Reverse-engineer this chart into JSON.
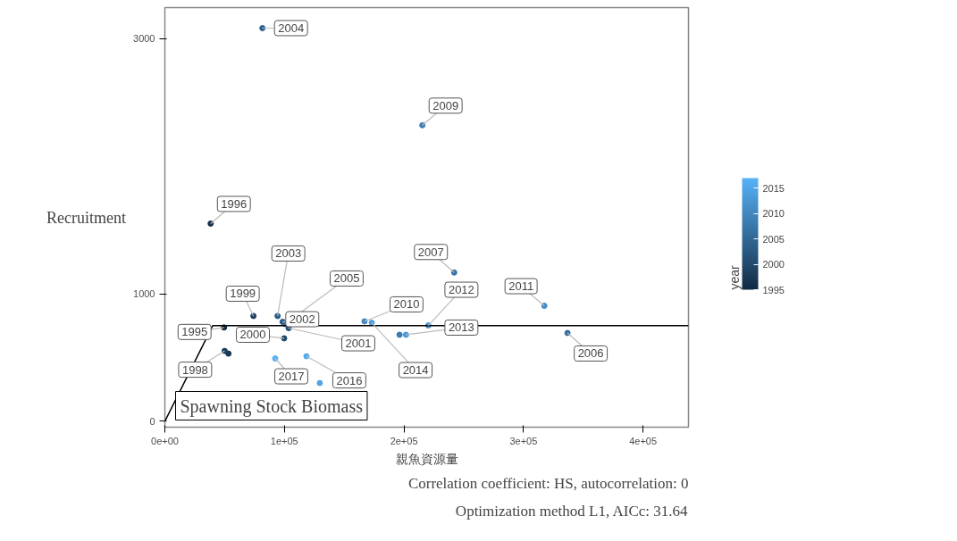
{
  "chart_data": {
    "type": "scatter",
    "xlabel": "親魚資源量",
    "ylabel": "Recruitment",
    "clabel": "year",
    "annotations": [
      "Spawning Stock Biomass",
      "Correlation coefficient: HS, autocorrelation: 0",
      "Optimization method L1, AICc: 31.64",
      {
        "text": "1995",
        "x": 49500,
        "y": 736
      },
      {
        "text": "1996",
        "x": 38300,
        "y": 1551
      },
      {
        "text": "1998",
        "x": 50000,
        "y": 552
      },
      {
        "text": "1999",
        "x": 74100,
        "y": 826
      },
      {
        "text": "2000",
        "x": 99800,
        "y": 651
      },
      {
        "text": "2001",
        "x": 103500,
        "y": 731
      },
      {
        "text": "2002",
        "x": 98500,
        "y": 780
      },
      {
        "text": "2003",
        "x": 94300,
        "y": 826
      },
      {
        "text": "2004",
        "x": 81600,
        "y": 3084
      },
      {
        "text": "2005",
        "x": 100500,
        "y": 763
      },
      {
        "text": "2006",
        "x": 336800,
        "y": 693
      },
      {
        "text": "2007",
        "x": 242000,
        "y": 1167
      },
      {
        "text": "2009",
        "x": 215400,
        "y": 2322
      },
      {
        "text": "2010",
        "x": 167000,
        "y": 784
      },
      {
        "text": "2011",
        "x": 317400,
        "y": 906
      },
      {
        "text": "2012",
        "x": 220400,
        "y": 752
      },
      {
        "text": "2013",
        "x": 201700,
        "y": 679
      },
      {
        "text": "2014",
        "x": 173100,
        "y": 773
      },
      {
        "text": "2016",
        "x": 118400,
        "y": 510
      },
      {
        "text": "2017",
        "x": 92300,
        "y": 493
      }
    ],
    "xlim": [
      0,
      438000
    ],
    "ylim": [
      -46,
      3245
    ],
    "xticks": [
      {
        "value": 0,
        "label": "0e+00"
      },
      {
        "value": 100000,
        "label": "1e+05"
      },
      {
        "value": 200000,
        "label": "2e+05"
      },
      {
        "value": 300000,
        "label": "3e+05"
      },
      {
        "value": 400000,
        "label": "4e+05"
      }
    ],
    "yticks": [
      0,
      1000,
      3000
    ],
    "clim": [
      1995,
      2017
    ],
    "cticks": [
      1995,
      2000,
      2005,
      2010,
      2015
    ],
    "grid": false,
    "series": [
      {
        "marker": "circle",
        "x": [
          49500,
          38300,
          53200,
          50000,
          74100,
          99800,
          103500,
          98500,
          94300,
          81600,
          100500,
          336800,
          242000,
          196300,
          215400,
          167000,
          317400,
          220400,
          201700,
          173100,
          129600,
          118400,
          92300
        ],
        "values": [
          736,
          1551,
          531,
          552,
          826,
          651,
          731,
          780,
          826,
          3084,
          763,
          693,
          1167,
          679,
          2322,
          784,
          906,
          752,
          679,
          773,
          300,
          510,
          493
        ],
        "cvalues": [
          1995,
          1996,
          1997,
          1998,
          1999,
          2000,
          2001,
          2002,
          2003,
          2004,
          2005,
          2006,
          2007,
          2008,
          2009,
          2010,
          2011,
          2012,
          2013,
          2014,
          2015,
          2016,
          2017
        ],
        "colors": [
          "#132b43",
          "#16314b",
          "#193753",
          "#1c3d5c",
          "#1f4364",
          "#22496c",
          "#255074",
          "#28567c",
          "#2b5c85",
          "#2e628d",
          "#316895",
          "#356e9d",
          "#3874a5",
          "#3b7aad",
          "#3e80b6",
          "#4186be",
          "#448cc6",
          "#4793ce",
          "#4a99d6",
          "#4d9fdf",
          "#50a5e7",
          "#53abef",
          "#56b1f7"
        ]
      },
      {
        "type": "line",
        "color": "#000000",
        "x": [
          0,
          40000,
          438000
        ],
        "values": [
          0,
          750,
          750
        ]
      }
    ]
  }
}
